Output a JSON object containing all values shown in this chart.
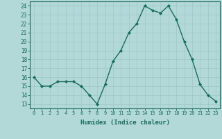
{
  "x": [
    0,
    1,
    2,
    3,
    4,
    5,
    6,
    7,
    8,
    9,
    10,
    11,
    12,
    13,
    14,
    15,
    16,
    17,
    18,
    19,
    20,
    21,
    22,
    23
  ],
  "y": [
    16.0,
    15.0,
    15.0,
    15.5,
    15.5,
    15.5,
    15.0,
    14.0,
    13.0,
    15.2,
    17.8,
    19.0,
    21.0,
    22.0,
    24.0,
    23.5,
    23.2,
    24.0,
    22.5,
    20.0,
    18.0,
    15.2,
    14.0,
    13.3
  ],
  "line_color": "#1a6b5a",
  "marker_color": "#1a6b5a",
  "bg_color": "#b2d8d8",
  "grid_color": "#9ec8c8",
  "xlabel": "Humidex (Indice chaleur)",
  "ylim": [
    12.5,
    24.5
  ],
  "yticks": [
    13,
    14,
    15,
    16,
    17,
    18,
    19,
    20,
    21,
    22,
    23,
    24
  ],
  "xticks": [
    0,
    1,
    2,
    3,
    4,
    5,
    6,
    7,
    8,
    9,
    10,
    11,
    12,
    13,
    14,
    15,
    16,
    17,
    18,
    19,
    20,
    21,
    22,
    23
  ],
  "tick_color": "#1a6b5a",
  "label_color": "#1a6b5a",
  "axis_color": "#1a6b5a"
}
